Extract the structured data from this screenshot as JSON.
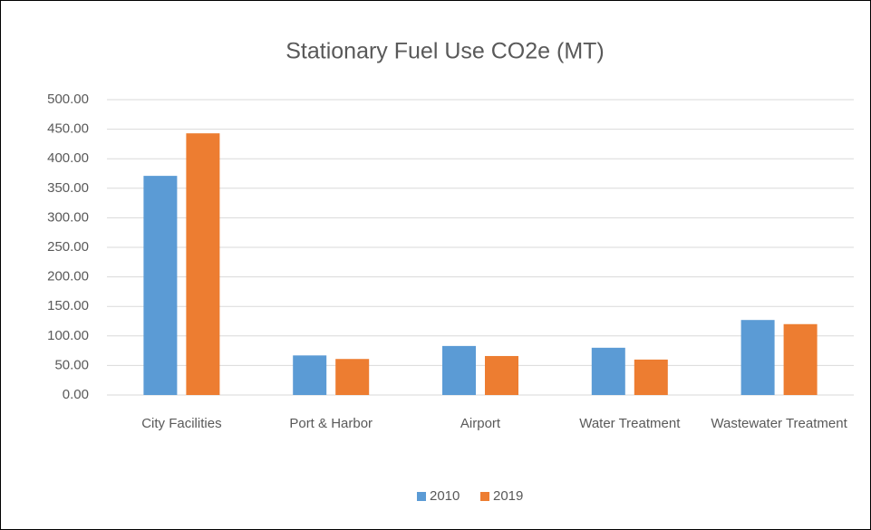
{
  "chart_data": {
    "type": "bar",
    "title": "Stationary Fuel Use CO2e (MT)",
    "categories": [
      "City Facilities",
      "Port & Harbor",
      "Airport",
      "Water Treatment",
      "Wastewater Treatment"
    ],
    "series": [
      {
        "name": "2010",
        "color": "#5b9bd5",
        "values": [
          371,
          67,
          83,
          80,
          127
        ]
      },
      {
        "name": "2019",
        "color": "#ed7d31",
        "values": [
          443,
          61,
          66,
          60,
          120
        ]
      }
    ],
    "ylim": [
      0,
      500
    ],
    "yticks": [
      {
        "value": 0,
        "label": "0.00"
      },
      {
        "value": 50,
        "label": "50.00"
      },
      {
        "value": 100,
        "label": "100.00"
      },
      {
        "value": 150,
        "label": "150.00"
      },
      {
        "value": 200,
        "label": "200.00"
      },
      {
        "value": 250,
        "label": "250.00"
      },
      {
        "value": 300,
        "label": "300.00"
      },
      {
        "value": 350,
        "label": "350.00"
      },
      {
        "value": 400,
        "label": "400.00"
      },
      {
        "value": 450,
        "label": "450.00"
      },
      {
        "value": 500,
        "label": "500.00"
      }
    ],
    "grid": true,
    "legend": "bottom"
  }
}
